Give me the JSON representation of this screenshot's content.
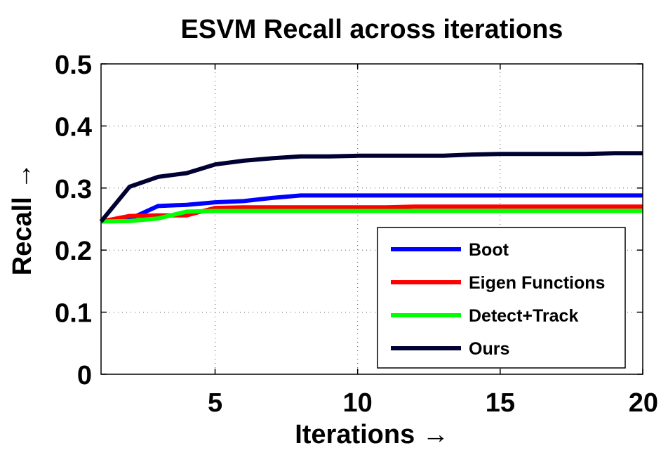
{
  "chart_data": {
    "type": "line",
    "title": "ESVM Recall across iterations",
    "xlabel": "Iterations →",
    "ylabel": "Recall →",
    "xlim": [
      1,
      20
    ],
    "ylim": [
      0,
      0.5
    ],
    "xticks": [
      5,
      10,
      15,
      20
    ],
    "xtick_labels": [
      "5",
      "10",
      "15",
      "20"
    ],
    "yticks": [
      0,
      0.1,
      0.2,
      0.3,
      0.4,
      0.5
    ],
    "ytick_labels": [
      "0",
      "0.1",
      "0.2",
      "0.3",
      "0.4",
      "0.5"
    ],
    "grid": true,
    "legend_position": "bottom-right",
    "x": [
      1,
      2,
      3,
      4,
      5,
      6,
      7,
      8,
      9,
      10,
      11,
      12,
      13,
      14,
      15,
      16,
      17,
      18,
      19,
      20
    ],
    "series": [
      {
        "name": "Boot",
        "color": "#0000ff",
        "values": [
          0.246,
          0.25,
          0.271,
          0.273,
          0.277,
          0.279,
          0.284,
          0.288,
          0.288,
          0.288,
          0.288,
          0.288,
          0.288,
          0.288,
          0.288,
          0.288,
          0.288,
          0.288,
          0.288,
          0.288
        ]
      },
      {
        "name": "Eigen Functions",
        "color": "#ff0000",
        "values": [
          0.246,
          0.255,
          0.256,
          0.256,
          0.268,
          0.269,
          0.269,
          0.269,
          0.269,
          0.269,
          0.269,
          0.27,
          0.27,
          0.27,
          0.27,
          0.27,
          0.27,
          0.27,
          0.27,
          0.27
        ]
      },
      {
        "name": "Detect+Track",
        "color": "#00ff00",
        "values": [
          0.246,
          0.247,
          0.251,
          0.262,
          0.263,
          0.263,
          0.263,
          0.263,
          0.263,
          0.263,
          0.263,
          0.263,
          0.263,
          0.263,
          0.263,
          0.263,
          0.263,
          0.263,
          0.263,
          0.263
        ]
      },
      {
        "name": "Ours",
        "color": "#000033",
        "values": [
          0.246,
          0.302,
          0.318,
          0.324,
          0.338,
          0.344,
          0.348,
          0.351,
          0.351,
          0.352,
          0.352,
          0.352,
          0.352,
          0.354,
          0.355,
          0.355,
          0.355,
          0.355,
          0.356,
          0.356
        ]
      }
    ]
  }
}
